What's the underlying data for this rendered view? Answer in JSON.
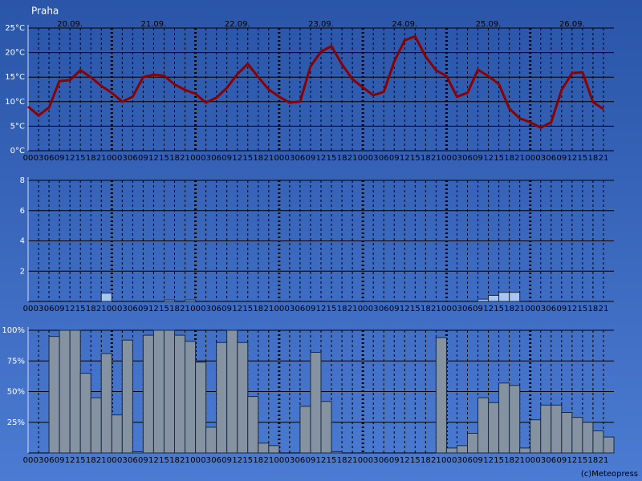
{
  "chart_data": [
    {
      "type": "line",
      "title": "Praha",
      "color": "#8b0000",
      "day_labels": [
        "20.09.",
        "21.09.",
        "22.09.",
        "23.09.",
        "24.09.",
        "25.09.",
        "26.09."
      ],
      "categories": [
        "00",
        "03",
        "06",
        "09",
        "12",
        "15",
        "18",
        "21",
        "00",
        "03",
        "06",
        "09",
        "12",
        "15",
        "18",
        "21",
        "00",
        "03",
        "06",
        "09",
        "12",
        "15",
        "18",
        "21",
        "00",
        "03",
        "06",
        "09",
        "12",
        "15",
        "18",
        "21",
        "00",
        "03",
        "06",
        "09",
        "12",
        "15",
        "18",
        "21",
        "00",
        "03",
        "06",
        "09",
        "12",
        "15",
        "18",
        "21",
        "00",
        "03",
        "06",
        "09",
        "12",
        "15",
        "18",
        "21"
      ],
      "values": [
        9,
        7.2,
        8.8,
        14.2,
        14.4,
        16.4,
        15,
        13.2,
        11.8,
        10,
        11,
        15,
        15.5,
        15.3,
        13.5,
        12.4,
        11.6,
        9.8,
        10.8,
        12.8,
        15.6,
        17.7,
        15,
        12.5,
        11,
        9.8,
        10,
        17.2,
        20.2,
        21.3,
        17.6,
        14.6,
        12.9,
        11.3,
        12,
        18.2,
        22.5,
        23.3,
        19.2,
        16.4,
        15.2,
        11,
        11.8,
        16.5,
        15.2,
        13.6,
        8.6,
        6.6,
        5.8,
        4.7,
        5.8,
        12.4,
        15.8,
        16,
        9.9,
        8.5
      ],
      "ylim": [
        0,
        25
      ],
      "yticks": [
        {
          "value": 0,
          "label": "0°C"
        },
        {
          "value": 5,
          "label": "5°C"
        },
        {
          "value": 10,
          "label": "10°C"
        },
        {
          "value": 15,
          "label": "15°C"
        },
        {
          "value": 20,
          "label": "20°C"
        },
        {
          "value": 25,
          "label": "25°C"
        }
      ]
    },
    {
      "type": "bar",
      "color": "#a9c6f2",
      "categories": [
        "00",
        "03",
        "06",
        "09",
        "12",
        "15",
        "18",
        "21",
        "00",
        "03",
        "06",
        "09",
        "12",
        "15",
        "18",
        "21",
        "00",
        "03",
        "06",
        "09",
        "12",
        "15",
        "18",
        "21",
        "00",
        "03",
        "06",
        "09",
        "12",
        "15",
        "18",
        "21",
        "00",
        "03",
        "06",
        "09",
        "12",
        "15",
        "18",
        "21",
        "00",
        "03",
        "06",
        "09",
        "12",
        "15",
        "18",
        "21",
        "00",
        "03",
        "06",
        "09",
        "12",
        "15",
        "18",
        "21"
      ],
      "values": [
        0,
        0,
        0,
        0,
        0,
        0,
        0,
        0.55,
        0,
        0,
        0,
        0,
        0,
        0.1,
        0,
        0.1,
        0,
        0,
        0,
        0,
        0,
        0,
        0,
        0,
        0,
        0,
        0,
        0,
        0,
        0,
        0,
        0,
        0,
        0,
        0,
        0,
        0,
        0,
        0,
        0,
        0,
        0,
        0,
        0.15,
        0.4,
        0.6,
        0.6,
        0,
        0,
        0,
        0,
        0,
        0,
        0,
        0,
        0
      ],
      "ylim": [
        0,
        8
      ],
      "yticks": [
        2,
        4,
        6,
        8
      ]
    },
    {
      "type": "bar",
      "color": "#8492a2",
      "credit": "(c)Meteopress",
      "categories": [
        "00",
        "03",
        "06",
        "09",
        "12",
        "15",
        "18",
        "21",
        "00",
        "03",
        "06",
        "09",
        "12",
        "15",
        "18",
        "21",
        "00",
        "03",
        "06",
        "09",
        "12",
        "15",
        "18",
        "21",
        "00",
        "03",
        "06",
        "09",
        "12",
        "15",
        "18",
        "21",
        "00",
        "03",
        "06",
        "09",
        "12",
        "15",
        "18",
        "21",
        "00",
        "03",
        "06",
        "09",
        "12",
        "15",
        "18",
        "21",
        "00",
        "03",
        "06",
        "09",
        "12",
        "15",
        "18",
        "21"
      ],
      "values": [
        0,
        0,
        95,
        100,
        100,
        65,
        45,
        81,
        31,
        92,
        1,
        96,
        100,
        100,
        96,
        91,
        74,
        21,
        90,
        100,
        90,
        46,
        8,
        6,
        0,
        0,
        38,
        82,
        42,
        1,
        0,
        0,
        0,
        0,
        0,
        0,
        0,
        0,
        0,
        94,
        4,
        6,
        16,
        45,
        41,
        57,
        55,
        4,
        27,
        39,
        39,
        33,
        29,
        25,
        18,
        13
      ],
      "ylim": [
        0,
        100
      ],
      "yticks": [
        {
          "value": 25,
          "label": "25%"
        },
        {
          "value": 50,
          "label": "50%"
        },
        {
          "value": 75,
          "label": "75%"
        },
        {
          "value": 100,
          "label": "100%"
        }
      ]
    }
  ]
}
